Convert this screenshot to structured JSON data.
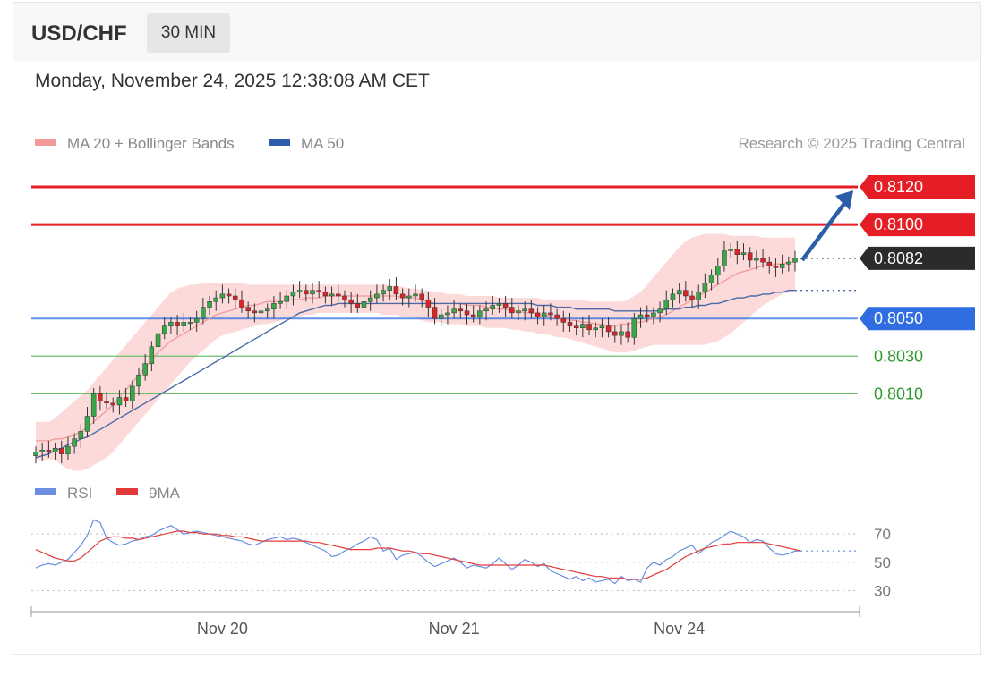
{
  "header": {
    "symbol": "USD/CHF",
    "timeframe": "30 MIN"
  },
  "timestamp": "Monday, November 24, 2025 12:38:08 AM CET",
  "credit": "Research © 2025 Trading Central",
  "colors": {
    "resistance": "#e51e25",
    "current": "#2b2b2b",
    "pivot": "#2f6de0",
    "support": "#6abf69",
    "support_text": "#2e9a2e",
    "bull": "#3aa64a",
    "bear": "#d6262a",
    "ma50": "#4a6ba8",
    "ma20": "#f29a9a",
    "band": "#fcd4d4",
    "arrow": "#2a5ea8",
    "rsi": "#6a8ee0",
    "rsi_ma": "#e23a3a"
  },
  "chart_data": [
    {
      "type": "candlestick",
      "title": "USD/CHF",
      "timeframe": "30 MIN",
      "legend": [
        {
          "name": "MA 20 + Bollinger Bands",
          "color": "#f29a9a"
        },
        {
          "name": "MA 50",
          "color": "#2d5da8"
        }
      ],
      "ylim": [
        0.7974,
        0.813
      ],
      "x_ticks": [
        {
          "index": 29,
          "label": "Nov 20"
        },
        {
          "index": 65,
          "label": "Nov 21"
        },
        {
          "index": 100,
          "label": "Nov 24"
        }
      ],
      "levels": [
        {
          "value": 0.812,
          "label": "0.8120",
          "role": "resistance"
        },
        {
          "value": 0.81,
          "label": "0.8100",
          "role": "resistance"
        },
        {
          "value": 0.8082,
          "label": "0.8082",
          "role": "current"
        },
        {
          "value": 0.805,
          "label": "0.8050",
          "role": "pivot"
        },
        {
          "value": 0.803,
          "label": "0.8030",
          "role": "support"
        },
        {
          "value": 0.801,
          "label": "0.8010",
          "role": "support"
        }
      ],
      "target_arrow": {
        "from": 0.8082,
        "to": 0.812,
        "direction": "up"
      },
      "close": [
        0.7979,
        0.798,
        0.7979,
        0.7981,
        0.7978,
        0.7982,
        0.7986,
        0.799,
        0.7998,
        0.801,
        0.8006,
        0.8005,
        0.8004,
        0.8008,
        0.8006,
        0.8014,
        0.802,
        0.8026,
        0.8035,
        0.8042,
        0.8046,
        0.8048,
        0.8046,
        0.8048,
        0.8048,
        0.805,
        0.8056,
        0.8059,
        0.8061,
        0.8063,
        0.8062,
        0.806,
        0.8056,
        0.8054,
        0.8053,
        0.8054,
        0.8055,
        0.8058,
        0.8059,
        0.8062,
        0.8064,
        0.8065,
        0.8063,
        0.8065,
        0.8064,
        0.8062,
        0.8063,
        0.8062,
        0.806,
        0.8058,
        0.8056,
        0.8059,
        0.8061,
        0.8063,
        0.8065,
        0.8067,
        0.8063,
        0.8061,
        0.8062,
        0.8063,
        0.806,
        0.8056,
        0.805,
        0.8052,
        0.8053,
        0.8055,
        0.8054,
        0.8052,
        0.8051,
        0.8054,
        0.8055,
        0.8057,
        0.8058,
        0.8056,
        0.8053,
        0.8054,
        0.8055,
        0.8053,
        0.8051,
        0.8053,
        0.8052,
        0.805,
        0.8048,
        0.8046,
        0.8045,
        0.8047,
        0.8044,
        0.8045,
        0.8046,
        0.8043,
        0.8041,
        0.8043,
        0.804,
        0.805,
        0.8052,
        0.8051,
        0.8053,
        0.8055,
        0.806,
        0.8063,
        0.8065,
        0.8062,
        0.806,
        0.8064,
        0.8069,
        0.8073,
        0.8078,
        0.8086,
        0.8087,
        0.8084,
        0.8085,
        0.8081,
        0.8082,
        0.808,
        0.8078,
        0.8077,
        0.8079,
        0.808,
        0.8082
      ],
      "ma50": [
        0.7976,
        0.7977,
        0.7978,
        0.798,
        0.7981,
        0.7983,
        0.7984,
        0.7986,
        0.7987,
        0.7989,
        0.7991,
        0.7993,
        0.7995,
        0.7997,
        0.7999,
        0.8001,
        0.8003,
        0.8005,
        0.8007,
        0.8009,
        0.8011,
        0.8013,
        0.8015,
        0.8017,
        0.8019,
        0.8021,
        0.8023,
        0.8025,
        0.8027,
        0.8029,
        0.8031,
        0.8033,
        0.8035,
        0.8037,
        0.8039,
        0.8041,
        0.8043,
        0.8045,
        0.8047,
        0.8049,
        0.8051,
        0.8053,
        0.8054,
        0.8055,
        0.8056,
        0.8057,
        0.8057,
        0.8058,
        0.8058,
        0.8058,
        0.8058,
        0.8058,
        0.8058,
        0.8058,
        0.8058,
        0.8058,
        0.8058,
        0.8058,
        0.8058,
        0.8058,
        0.8058,
        0.8058,
        0.8058,
        0.8058,
        0.8058,
        0.8058,
        0.8058,
        0.8058,
        0.8058,
        0.8058,
        0.8058,
        0.8058,
        0.8058,
        0.8058,
        0.8058,
        0.8058,
        0.8058,
        0.8058,
        0.8057,
        0.8057,
        0.8057,
        0.8056,
        0.8056,
        0.8056,
        0.8055,
        0.8055,
        0.8055,
        0.8055,
        0.8055,
        0.8055,
        0.8054,
        0.8054,
        0.8054,
        0.8054,
        0.8054,
        0.8054,
        0.8054,
        0.8054,
        0.8055,
        0.8055,
        0.8055,
        0.8056,
        0.8056,
        0.8057,
        0.8057,
        0.8058,
        0.8058,
        0.8059,
        0.806,
        0.8061,
        0.8061,
        0.8062,
        0.8062,
        0.8063,
        0.8063,
        0.8064,
        0.8064,
        0.8065,
        0.8065
      ],
      "ma20": [
        0.7985,
        0.7985,
        0.7985,
        0.7986,
        0.7986,
        0.7987,
        0.7988,
        0.799,
        0.7992,
        0.7995,
        0.7998,
        0.8001,
        0.8004,
        0.8008,
        0.8012,
        0.8016,
        0.802,
        0.8024,
        0.8028,
        0.8032,
        0.8035,
        0.8038,
        0.804,
        0.8042,
        0.8044,
        0.8046,
        0.8048,
        0.805,
        0.8052,
        0.8053,
        0.8054,
        0.8055,
        0.8056,
        0.8057,
        0.8057,
        0.8058,
        0.8059,
        0.8059,
        0.8059,
        0.806,
        0.806,
        0.806,
        0.8061,
        0.8061,
        0.8061,
        0.8062,
        0.8062,
        0.8062,
        0.8062,
        0.8062,
        0.8062,
        0.8062,
        0.8062,
        0.8062,
        0.8062,
        0.8062,
        0.8062,
        0.8061,
        0.8061,
        0.8061,
        0.806,
        0.8059,
        0.8058,
        0.8058,
        0.8058,
        0.8058,
        0.8058,
        0.8057,
        0.8057,
        0.8057,
        0.8056,
        0.8056,
        0.8055,
        0.8055,
        0.8054,
        0.8054,
        0.8053,
        0.8053,
        0.8052,
        0.8052,
        0.8051,
        0.805,
        0.805,
        0.8049,
        0.8049,
        0.8048,
        0.8048,
        0.8047,
        0.8047,
        0.8046,
        0.8046,
        0.8047,
        0.8047,
        0.8048,
        0.8048,
        0.8049,
        0.805,
        0.8051,
        0.8052,
        0.8054,
        0.8056,
        0.8058,
        0.806,
        0.8062,
        0.8064,
        0.8066,
        0.8068,
        0.807,
        0.8072,
        0.8074,
        0.8075,
        0.8076,
        0.8077,
        0.8078,
        0.8078,
        0.8079,
        0.8079,
        0.808,
        0.808
      ],
      "band_upper": [
        0.7995,
        0.7995,
        0.7995,
        0.7997,
        0.8,
        0.8003,
        0.8006,
        0.8009,
        0.8012,
        0.8016,
        0.802,
        0.8024,
        0.8028,
        0.8032,
        0.8036,
        0.804,
        0.8044,
        0.8048,
        0.8052,
        0.8056,
        0.806,
        0.8064,
        0.8066,
        0.8067,
        0.8068,
        0.8068,
        0.8069,
        0.8069,
        0.8069,
        0.8069,
        0.8069,
        0.8069,
        0.8069,
        0.8068,
        0.8068,
        0.8068,
        0.8068,
        0.8068,
        0.8068,
        0.8068,
        0.8068,
        0.8068,
        0.8068,
        0.8068,
        0.8068,
        0.8068,
        0.8068,
        0.8068,
        0.8068,
        0.8068,
        0.8068,
        0.8068,
        0.8068,
        0.8068,
        0.8068,
        0.8068,
        0.8067,
        0.8067,
        0.8066,
        0.8066,
        0.8065,
        0.8065,
        0.8064,
        0.8064,
        0.8063,
        0.8063,
        0.8063,
        0.8062,
        0.8062,
        0.8062,
        0.8062,
        0.8062,
        0.8061,
        0.8061,
        0.8061,
        0.8061,
        0.8061,
        0.8061,
        0.8061,
        0.806,
        0.806,
        0.806,
        0.806,
        0.806,
        0.806,
        0.806,
        0.8059,
        0.8059,
        0.8059,
        0.8059,
        0.8059,
        0.8059,
        0.806,
        0.8062,
        0.8064,
        0.8068,
        0.8072,
        0.8076,
        0.808,
        0.8084,
        0.8088,
        0.8091,
        0.8093,
        0.8094,
        0.8095,
        0.8095,
        0.8095,
        0.8095,
        0.8094,
        0.8094,
        0.8094,
        0.8094,
        0.8094,
        0.8093,
        0.8093,
        0.8093,
        0.8093,
        0.8093,
        0.8093
      ],
      "band_lower": [
        0.7975,
        0.7975,
        0.7975,
        0.7975,
        0.7972,
        0.797,
        0.7969,
        0.7969,
        0.797,
        0.7972,
        0.7974,
        0.7976,
        0.7979,
        0.7983,
        0.7987,
        0.7991,
        0.7995,
        0.7999,
        0.8003,
        0.8007,
        0.8011,
        0.8015,
        0.8019,
        0.8023,
        0.8027,
        0.803,
        0.8033,
        0.8036,
        0.8039,
        0.8041,
        0.8042,
        0.8043,
        0.8044,
        0.8045,
        0.8046,
        0.8047,
        0.8047,
        0.8048,
        0.8049,
        0.805,
        0.8051,
        0.8051,
        0.8052,
        0.8052,
        0.8053,
        0.8053,
        0.8053,
        0.8053,
        0.8053,
        0.8053,
        0.8053,
        0.8053,
        0.8053,
        0.8053,
        0.8052,
        0.8052,
        0.8052,
        0.8051,
        0.8051,
        0.805,
        0.8049,
        0.8048,
        0.8048,
        0.8048,
        0.8047,
        0.8047,
        0.8047,
        0.8046,
        0.8046,
        0.8046,
        0.8045,
        0.8045,
        0.8045,
        0.8045,
        0.8044,
        0.8044,
        0.8043,
        0.8043,
        0.8042,
        0.8042,
        0.8041,
        0.804,
        0.804,
        0.8039,
        0.8038,
        0.8037,
        0.8036,
        0.8035,
        0.8034,
        0.8033,
        0.8032,
        0.8032,
        0.8032,
        0.8033,
        0.8034,
        0.8035,
        0.8036,
        0.8036,
        0.8036,
        0.8036,
        0.8036,
        0.8036,
        0.8036,
        0.8036,
        0.8036,
        0.8037,
        0.8038,
        0.804,
        0.8042,
        0.8045,
        0.8048,
        0.8051,
        0.8054,
        0.8057,
        0.8059,
        0.8061,
        0.8063,
        0.8064,
        0.8065
      ]
    },
    {
      "type": "line",
      "legend": [
        {
          "name": "RSI",
          "color": "#6a8ee0"
        },
        {
          "name": "9MA",
          "color": "#e23a3a"
        }
      ],
      "ylim": [
        24,
        84
      ],
      "y_ticks": [
        70,
        50,
        30
      ],
      "current": 58,
      "rsi": [
        46,
        48,
        49,
        48,
        50,
        52,
        57,
        62,
        69,
        80,
        78,
        67,
        64,
        62,
        63,
        65,
        66,
        68,
        69,
        72,
        74,
        76,
        73,
        70,
        71,
        72,
        71,
        70,
        69,
        68,
        67,
        66,
        65,
        63,
        62,
        64,
        66,
        67,
        68,
        66,
        67,
        66,
        64,
        62,
        60,
        58,
        54,
        55,
        58,
        60,
        63,
        65,
        68,
        66,
        58,
        60,
        52,
        55,
        56,
        57,
        54,
        50,
        47,
        49,
        51,
        53,
        50,
        46,
        48,
        47,
        46,
        49,
        53,
        49,
        45,
        48,
        52,
        50,
        47,
        49,
        44,
        42,
        40,
        38,
        40,
        37,
        39,
        36,
        37,
        38,
        35,
        40,
        37,
        38,
        36,
        46,
        50,
        48,
        52,
        54,
        58,
        60,
        62,
        56,
        60,
        64,
        66,
        69,
        72,
        70,
        68,
        64,
        66,
        65,
        60,
        56,
        55,
        56,
        58,
        58
      ],
      "ma9": [
        59,
        57,
        55,
        53,
        52,
        51,
        51,
        53,
        57,
        61,
        65,
        67,
        68,
        68,
        67,
        67,
        66,
        67,
        68,
        69,
        70,
        71,
        72,
        72,
        71,
        71,
        70,
        70,
        70,
        69,
        69,
        68,
        68,
        67,
        66,
        65,
        65,
        65,
        65,
        65,
        65,
        65,
        65,
        64,
        64,
        63,
        62,
        61,
        60,
        59,
        59,
        59,
        59,
        60,
        60,
        60,
        59,
        58,
        58,
        57,
        56,
        56,
        55,
        54,
        53,
        52,
        51,
        50,
        49,
        48,
        48,
        48,
        48,
        48,
        48,
        48,
        48,
        48,
        48,
        48,
        47,
        46,
        45,
        44,
        43,
        42,
        41,
        40,
        40,
        39,
        39,
        39,
        38,
        38,
        38,
        39,
        41,
        43,
        45,
        48,
        51,
        54,
        56,
        58,
        60,
        61,
        62,
        63,
        63,
        64,
        64,
        64,
        64,
        64,
        63,
        62,
        61,
        60,
        59,
        58
      ]
    }
  ]
}
